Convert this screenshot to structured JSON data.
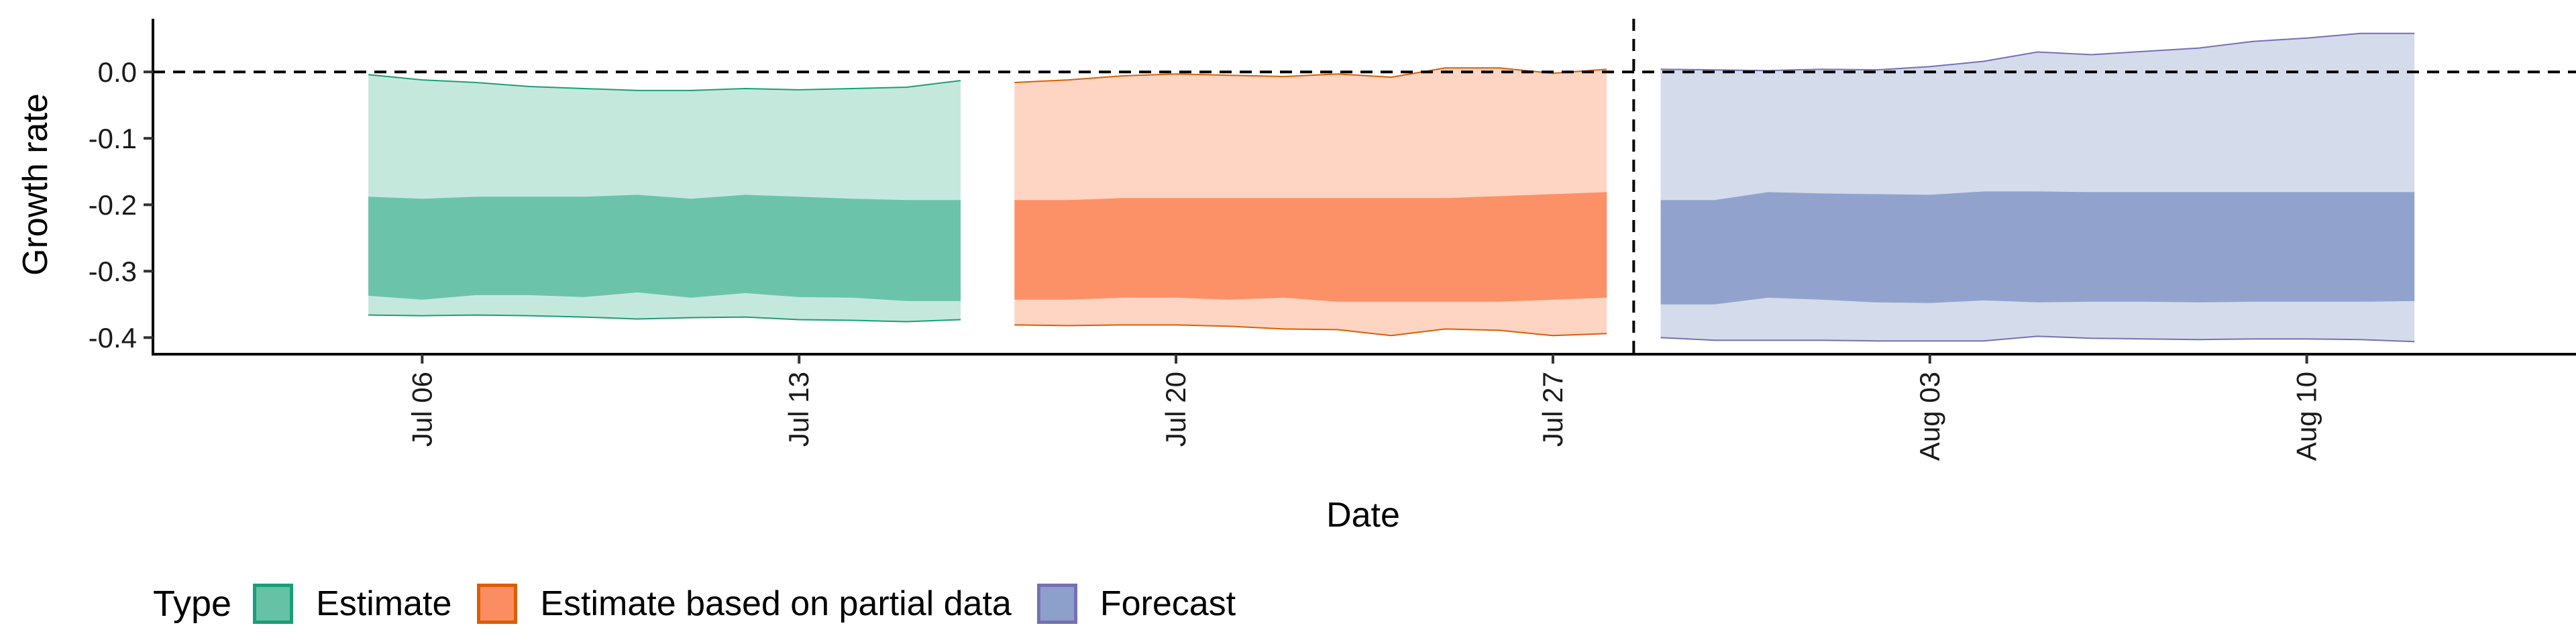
{
  "chart_data": {
    "type": "area",
    "xlabel": "Date",
    "ylabel": "Growth rate",
    "xlim": [
      "2020-07-01",
      "2020-08-15"
    ],
    "ylim": [
      -0.425,
      0.08
    ],
    "x_ticks": [
      {
        "date": "2020-07-06",
        "label": "Jul 06"
      },
      {
        "date": "2020-07-13",
        "label": "Jul 13"
      },
      {
        "date": "2020-07-20",
        "label": "Jul 20"
      },
      {
        "date": "2020-07-27",
        "label": "Jul 27"
      },
      {
        "date": "2020-08-03",
        "label": "Aug 03"
      },
      {
        "date": "2020-08-10",
        "label": "Aug 10"
      }
    ],
    "y_ticks": [
      {
        "value": 0.0,
        "label": "0.0"
      },
      {
        "value": -0.1,
        "label": "-0.1"
      },
      {
        "value": -0.2,
        "label": "-0.2"
      },
      {
        "value": -0.3,
        "label": "-0.3"
      },
      {
        "value": -0.4,
        "label": "-0.4"
      }
    ],
    "reference_lines": {
      "horizontal_y": 0.0,
      "vertical_x": "2020-07-28"
    },
    "grid": false,
    "legend": {
      "title": "Type",
      "position": "bottom-left"
    },
    "series": [
      {
        "name": "Estimate",
        "fill": "#66c2a5",
        "line": "#1b9e77",
        "x": [
          "2020-07-05",
          "2020-07-06",
          "2020-07-07",
          "2020-07-08",
          "2020-07-09",
          "2020-07-10",
          "2020-07-11",
          "2020-07-12",
          "2020-07-13",
          "2020-07-14",
          "2020-07-15",
          "2020-07-16"
        ],
        "outer_lower": [
          -0.366,
          -0.367,
          -0.366,
          -0.367,
          -0.369,
          -0.372,
          -0.37,
          -0.369,
          -0.373,
          -0.374,
          -0.376,
          -0.373
        ],
        "outer_upper": [
          -0.004,
          -0.012,
          -0.016,
          -0.022,
          -0.025,
          -0.028,
          -0.028,
          -0.025,
          -0.027,
          -0.025,
          -0.023,
          -0.013
        ],
        "inner_lower": [
          -0.337,
          -0.343,
          -0.336,
          -0.336,
          -0.339,
          -0.332,
          -0.34,
          -0.333,
          -0.339,
          -0.34,
          -0.345,
          -0.345
        ],
        "inner_upper": [
          -0.188,
          -0.191,
          -0.188,
          -0.188,
          -0.188,
          -0.185,
          -0.191,
          -0.185,
          -0.188,
          -0.191,
          -0.193,
          -0.193
        ]
      },
      {
        "name": "Estimate based on partial data",
        "fill": "#fc8d62",
        "line": "#d95f02",
        "x": [
          "2020-07-17",
          "2020-07-18",
          "2020-07-19",
          "2020-07-20",
          "2020-07-21",
          "2020-07-22",
          "2020-07-23",
          "2020-07-24",
          "2020-07-25",
          "2020-07-26",
          "2020-07-27",
          "2020-07-28"
        ],
        "outer_lower": [
          -0.381,
          -0.382,
          -0.381,
          -0.381,
          -0.383,
          -0.387,
          -0.388,
          -0.397,
          -0.387,
          -0.389,
          -0.397,
          -0.394
        ],
        "outer_upper": [
          -0.016,
          -0.012,
          -0.006,
          -0.003,
          -0.005,
          -0.007,
          -0.003,
          -0.008,
          0.006,
          0.006,
          -0.002,
          0.004
        ],
        "inner_lower": [
          -0.343,
          -0.343,
          -0.34,
          -0.34,
          -0.343,
          -0.34,
          -0.346,
          -0.346,
          -0.346,
          -0.346,
          -0.343,
          -0.34
        ],
        "inner_upper": [
          -0.193,
          -0.193,
          -0.19,
          -0.19,
          -0.19,
          -0.19,
          -0.19,
          -0.19,
          -0.19,
          -0.187,
          -0.184,
          -0.181
        ]
      },
      {
        "name": "Forecast",
        "fill": "#8da0cb",
        "line": "#7570b3",
        "x": [
          "2020-07-29",
          "2020-07-30",
          "2020-07-31",
          "2020-08-01",
          "2020-08-02",
          "2020-08-03",
          "2020-08-04",
          "2020-08-05",
          "2020-08-06",
          "2020-08-07",
          "2020-08-08",
          "2020-08-09",
          "2020-08-10",
          "2020-08-11",
          "2020-08-12"
        ],
        "outer_lower": [
          -0.4,
          -0.404,
          -0.404,
          -0.404,
          -0.405,
          -0.405,
          -0.405,
          -0.398,
          -0.401,
          -0.402,
          -0.403,
          -0.402,
          -0.402,
          -0.403,
          -0.406
        ],
        "outer_upper": [
          0.004,
          0.003,
          0.002,
          0.004,
          0.003,
          0.008,
          0.016,
          0.03,
          0.026,
          0.031,
          0.036,
          0.046,
          0.051,
          0.058,
          0.058
        ],
        "inner_lower": [
          -0.35,
          -0.35,
          -0.34,
          -0.343,
          -0.347,
          -0.348,
          -0.344,
          -0.347,
          -0.346,
          -0.346,
          -0.347,
          -0.346,
          -0.346,
          -0.346,
          -0.345
        ],
        "inner_upper": [
          -0.193,
          -0.193,
          -0.181,
          -0.183,
          -0.184,
          -0.185,
          -0.18,
          -0.18,
          -0.181,
          -0.181,
          -0.181,
          -0.181,
          -0.181,
          -0.181,
          -0.181
        ]
      }
    ]
  }
}
